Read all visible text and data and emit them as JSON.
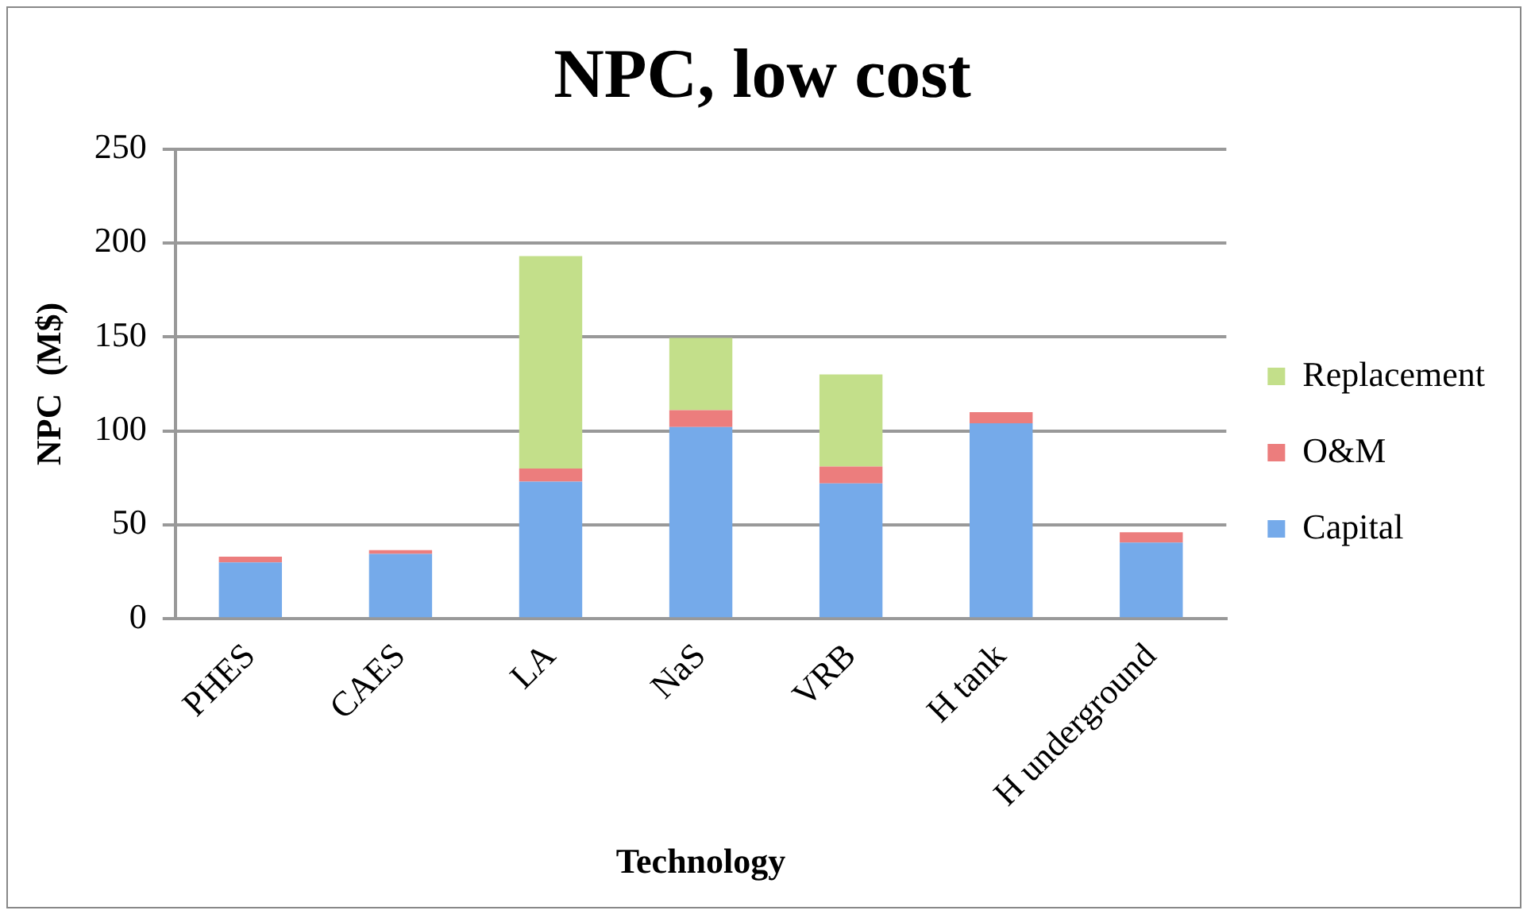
{
  "chart_data": {
    "type": "bar",
    "title": "NPC, low cost",
    "xlabel": "Technology",
    "ylabel": "NPC  (M$)",
    "categories": [
      "PHES",
      "CAES",
      "LA",
      "NaS",
      "VRB",
      "H tank",
      "H underground"
    ],
    "series": [
      {
        "name": "Capital",
        "color": "#75aaea",
        "values": [
          30,
          34.5,
          73,
          102,
          72,
          104,
          40.5
        ]
      },
      {
        "name": "O&M",
        "color": "#ec7d7d",
        "values": [
          3,
          2,
          7,
          9,
          9,
          6,
          5.5
        ]
      },
      {
        "name": "Replacement",
        "color": "#c3df8a",
        "values": [
          null,
          null,
          113,
          38.5,
          49,
          null,
          null
        ]
      }
    ],
    "stacked": true,
    "ylim": [
      0,
      250
    ],
    "yticks": [
      0,
      50,
      100,
      150,
      200,
      250
    ],
    "grid": "y",
    "legend": "right"
  }
}
